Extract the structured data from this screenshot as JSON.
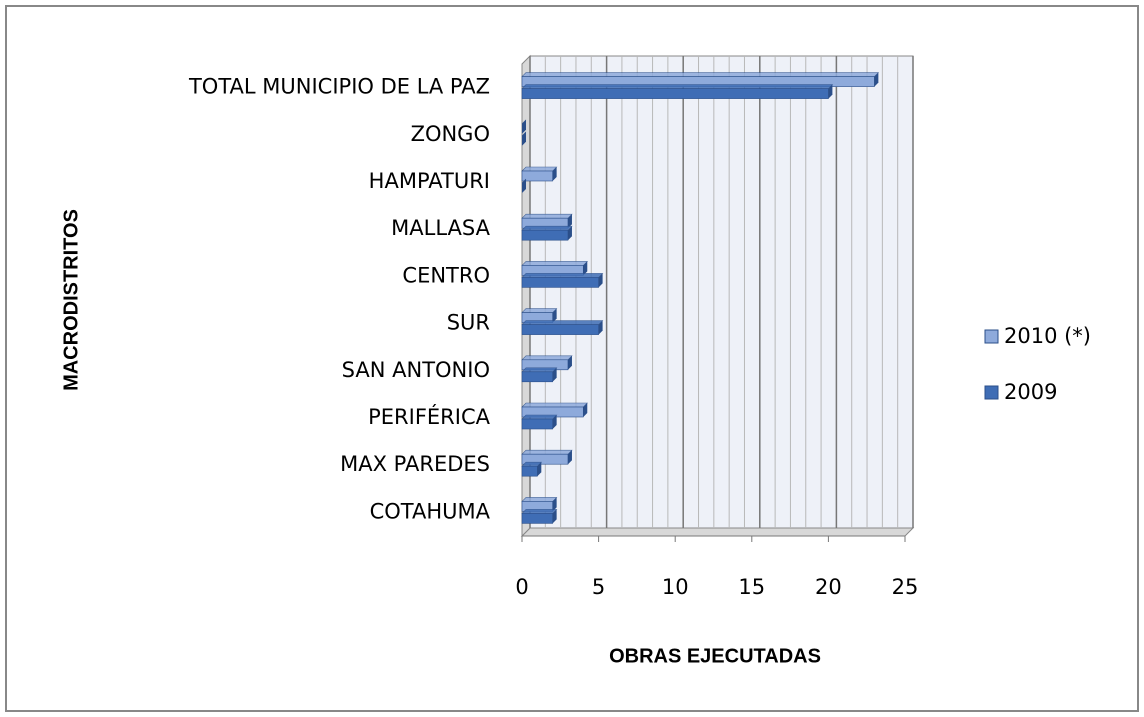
{
  "chart_data": {
    "type": "bar",
    "orientation": "horizontal",
    "x_label": "OBRAS EJECUTADAS",
    "y_label": "MACRODISTRITOS",
    "categories": [
      "COTAHUMA",
      "MAX PAREDES",
      "PERIFÉRICA",
      "SAN ANTONIO",
      "SUR",
      "CENTRO",
      "MALLASA",
      "HAMPATURI",
      "ZONGO",
      "TOTAL MUNICIPIO DE LA PAZ"
    ],
    "series": [
      {
        "name": "2010 (*)",
        "color": "#8eaadb",
        "values": [
          2,
          3,
          4,
          3,
          2,
          4,
          3,
          2,
          0,
          23
        ]
      },
      {
        "name": "2009",
        "color": "#3f6db5",
        "values": [
          2,
          1,
          2,
          2,
          5,
          5,
          3,
          0,
          0,
          20
        ]
      }
    ],
    "xlim": [
      0,
      25
    ],
    "xticks": [
      0,
      5,
      10,
      15,
      20,
      25
    ],
    "grid": true,
    "legend": "right"
  }
}
